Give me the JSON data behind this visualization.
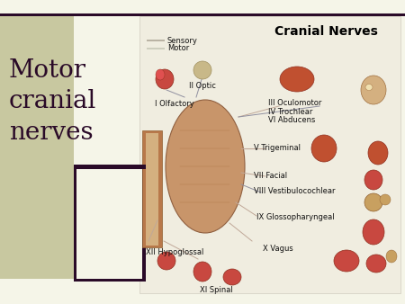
{
  "bg_color": "#f5f5e8",
  "left_strip_color": "#c8c8a0",
  "right_panel_bg": "#f0ede0",
  "dark_bar_color": "#2a0a28",
  "title_text": "Motor\ncranial\nnerves",
  "title_color": "#2a0a28",
  "title_fontsize": 20,
  "slide_title": "Cranial Nerves",
  "slide_title_color": "#000000",
  "slide_title_fontsize": 10,
  "slide_title_bold": true,
  "legend_sensory": "Sensory",
  "legend_motor": "Motor",
  "legend_color_sensory": "#b0a898",
  "legend_color_motor": "#c8c8b8",
  "nerve_fontsize": 6.0,
  "nerve_color": "#111111",
  "brain_color": "#c8956a",
  "brain_edge": "#906040",
  "stem_color": "#b8784a",
  "organ_red": "#c84840",
  "organ_tan": "#c8a070",
  "organ_edge": "#903020"
}
